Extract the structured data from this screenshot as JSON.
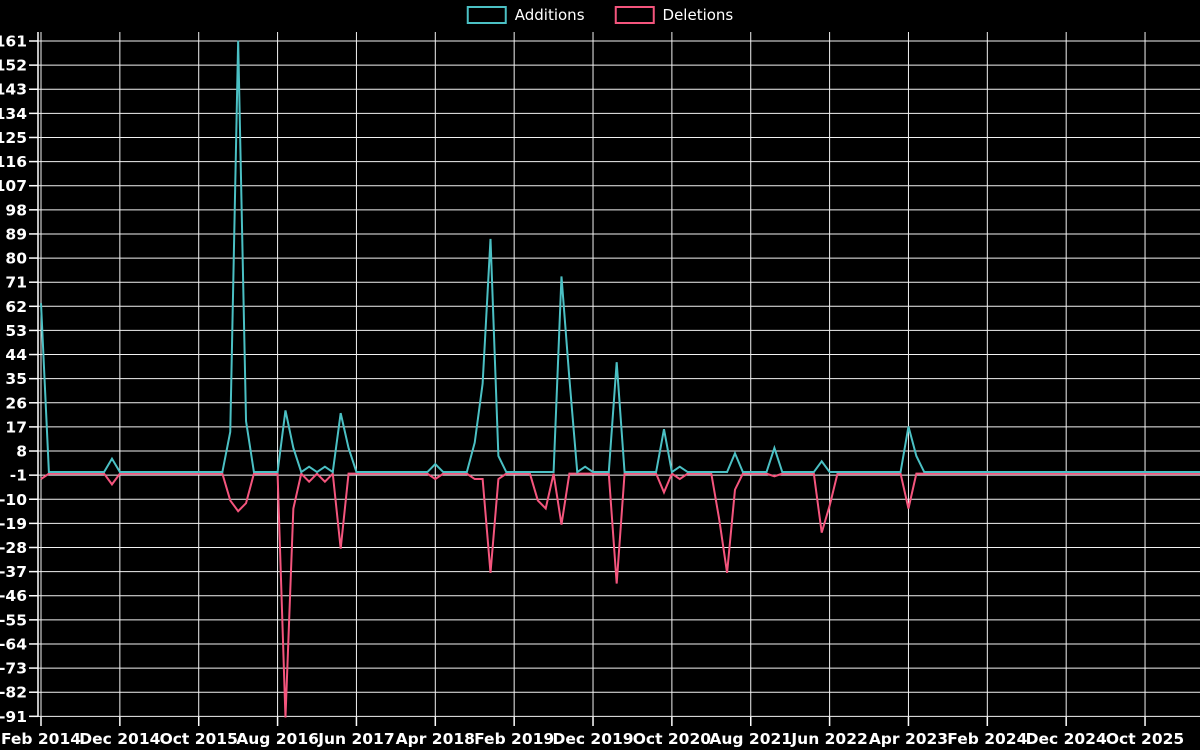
{
  "legend": {
    "items": [
      {
        "label": "Additions",
        "color": "#4bc0c4"
      },
      {
        "label": "Deletions",
        "color": "#f4557d"
      }
    ]
  },
  "chart_data": {
    "type": "line",
    "title": "",
    "xlabel": "",
    "ylabel": "",
    "background_color": "#000000",
    "grid": true,
    "grid_color": "#f2f2f2",
    "axis_text_color": "#ffffff",
    "legend_position": "top",
    "x_range": {
      "start_month": "2014-02",
      "end_month": "2026-05"
    },
    "x_tick_labels": [
      "Feb 2014",
      "Dec 2014",
      "Oct 2015",
      "Aug 2016",
      "Jun 2017",
      "Apr 2018",
      "Feb 2019",
      "Dec 2019",
      "Oct 2020",
      "Aug 2021",
      "Jun 2022",
      "Apr 2023",
      "Feb 2024",
      "Dec 2024",
      "Oct 2025"
    ],
    "x_tick_every_months": 10,
    "y_ticks": [
      161,
      152,
      143,
      134,
      125,
      116,
      107,
      98,
      89,
      80,
      71,
      62,
      53,
      44,
      35,
      26,
      17,
      8,
      -1,
      -10,
      -19,
      -28,
      -37,
      -46,
      -55,
      -64,
      -73,
      -82,
      -91
    ],
    "ylim": [
      -91,
      161
    ],
    "default_value": 0,
    "series": [
      {
        "name": "Additions",
        "color": "#4bc0c4",
        "points": {
          "2014-02": 63,
          "2014-11": 5,
          "2016-02": 15,
          "2016-03": 161,
          "2016-04": 19,
          "2016-09": 23,
          "2016-10": 9,
          "2016-12": 2,
          "2017-02": 2,
          "2017-04": 22,
          "2017-05": 9,
          "2018-04": 3,
          "2018-09": 11,
          "2018-10": 33,
          "2018-11": 87,
          "2018-12": 6,
          "2019-08": 73,
          "2019-09": 35,
          "2019-11": 2,
          "2020-03": 41,
          "2020-09": 16,
          "2020-11": 2,
          "2021-06": 7,
          "2021-11": 9,
          "2022-05": 4,
          "2023-04": 17,
          "2023-05": 6
        }
      },
      {
        "name": "Deletions",
        "color": "#f4557d",
        "points": {
          "2014-02": -2,
          "2014-11": -4,
          "2016-02": -10,
          "2016-03": -14,
          "2016-04": -11,
          "2016-09": -91,
          "2016-10": -13,
          "2016-12": -3,
          "2017-02": -3,
          "2017-04": -28,
          "2018-04": -2,
          "2018-09": -2,
          "2018-10": -2,
          "2018-11": -37,
          "2018-12": -2,
          "2019-05": -10,
          "2019-06": -13,
          "2019-08": -19,
          "2020-03": -41,
          "2020-09": -7,
          "2020-11": -2,
          "2021-04": -17,
          "2021-05": -37,
          "2021-06": -6,
          "2021-11": -1,
          "2022-05": -22,
          "2022-06": -12,
          "2023-04": -13
        }
      }
    ]
  }
}
